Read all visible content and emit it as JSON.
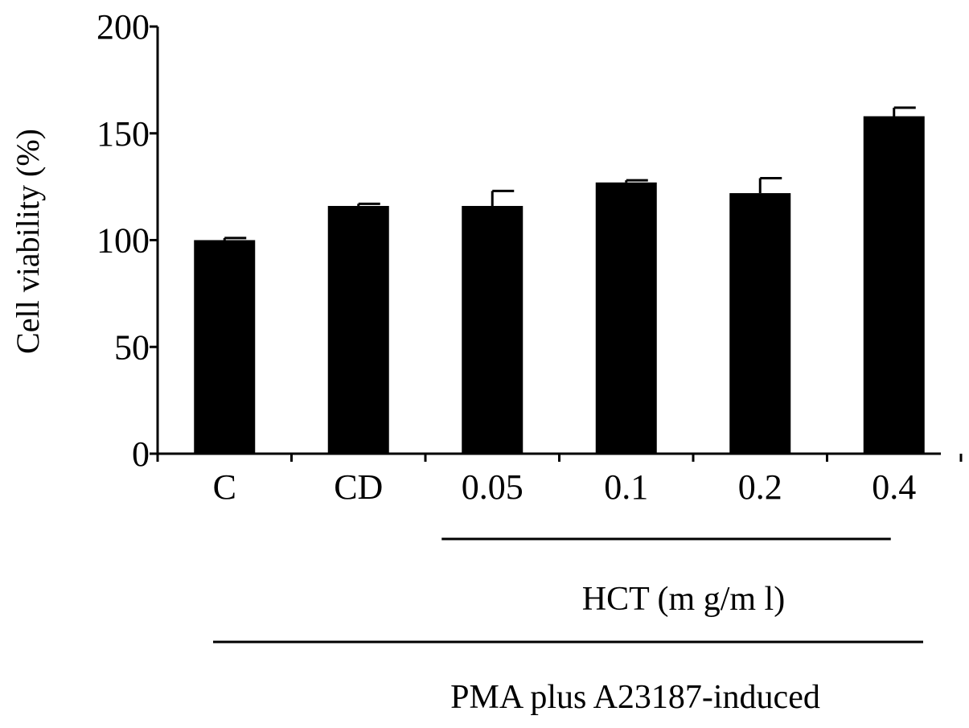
{
  "chart_data": {
    "type": "bar",
    "categories": [
      "C",
      "CD",
      "0.05",
      "0.1",
      "0.2",
      "0.4"
    ],
    "values": [
      100,
      116,
      116,
      127,
      122,
      158
    ],
    "errors": [
      1,
      1,
      7,
      1,
      7,
      4
    ],
    "ylabel": "Cell viability (%)",
    "xlabel": "",
    "ylim": [
      0,
      200
    ],
    "yticks": [
      0,
      50,
      100,
      150,
      200
    ],
    "bar_color": "#000000",
    "grid": false,
    "groups": [
      {
        "label": "HCT (m g/m l)",
        "from": "0.05",
        "to": "0.4"
      },
      {
        "label": "PMA plus A23187-induced",
        "from": "C",
        "to": "0.4"
      }
    ]
  }
}
